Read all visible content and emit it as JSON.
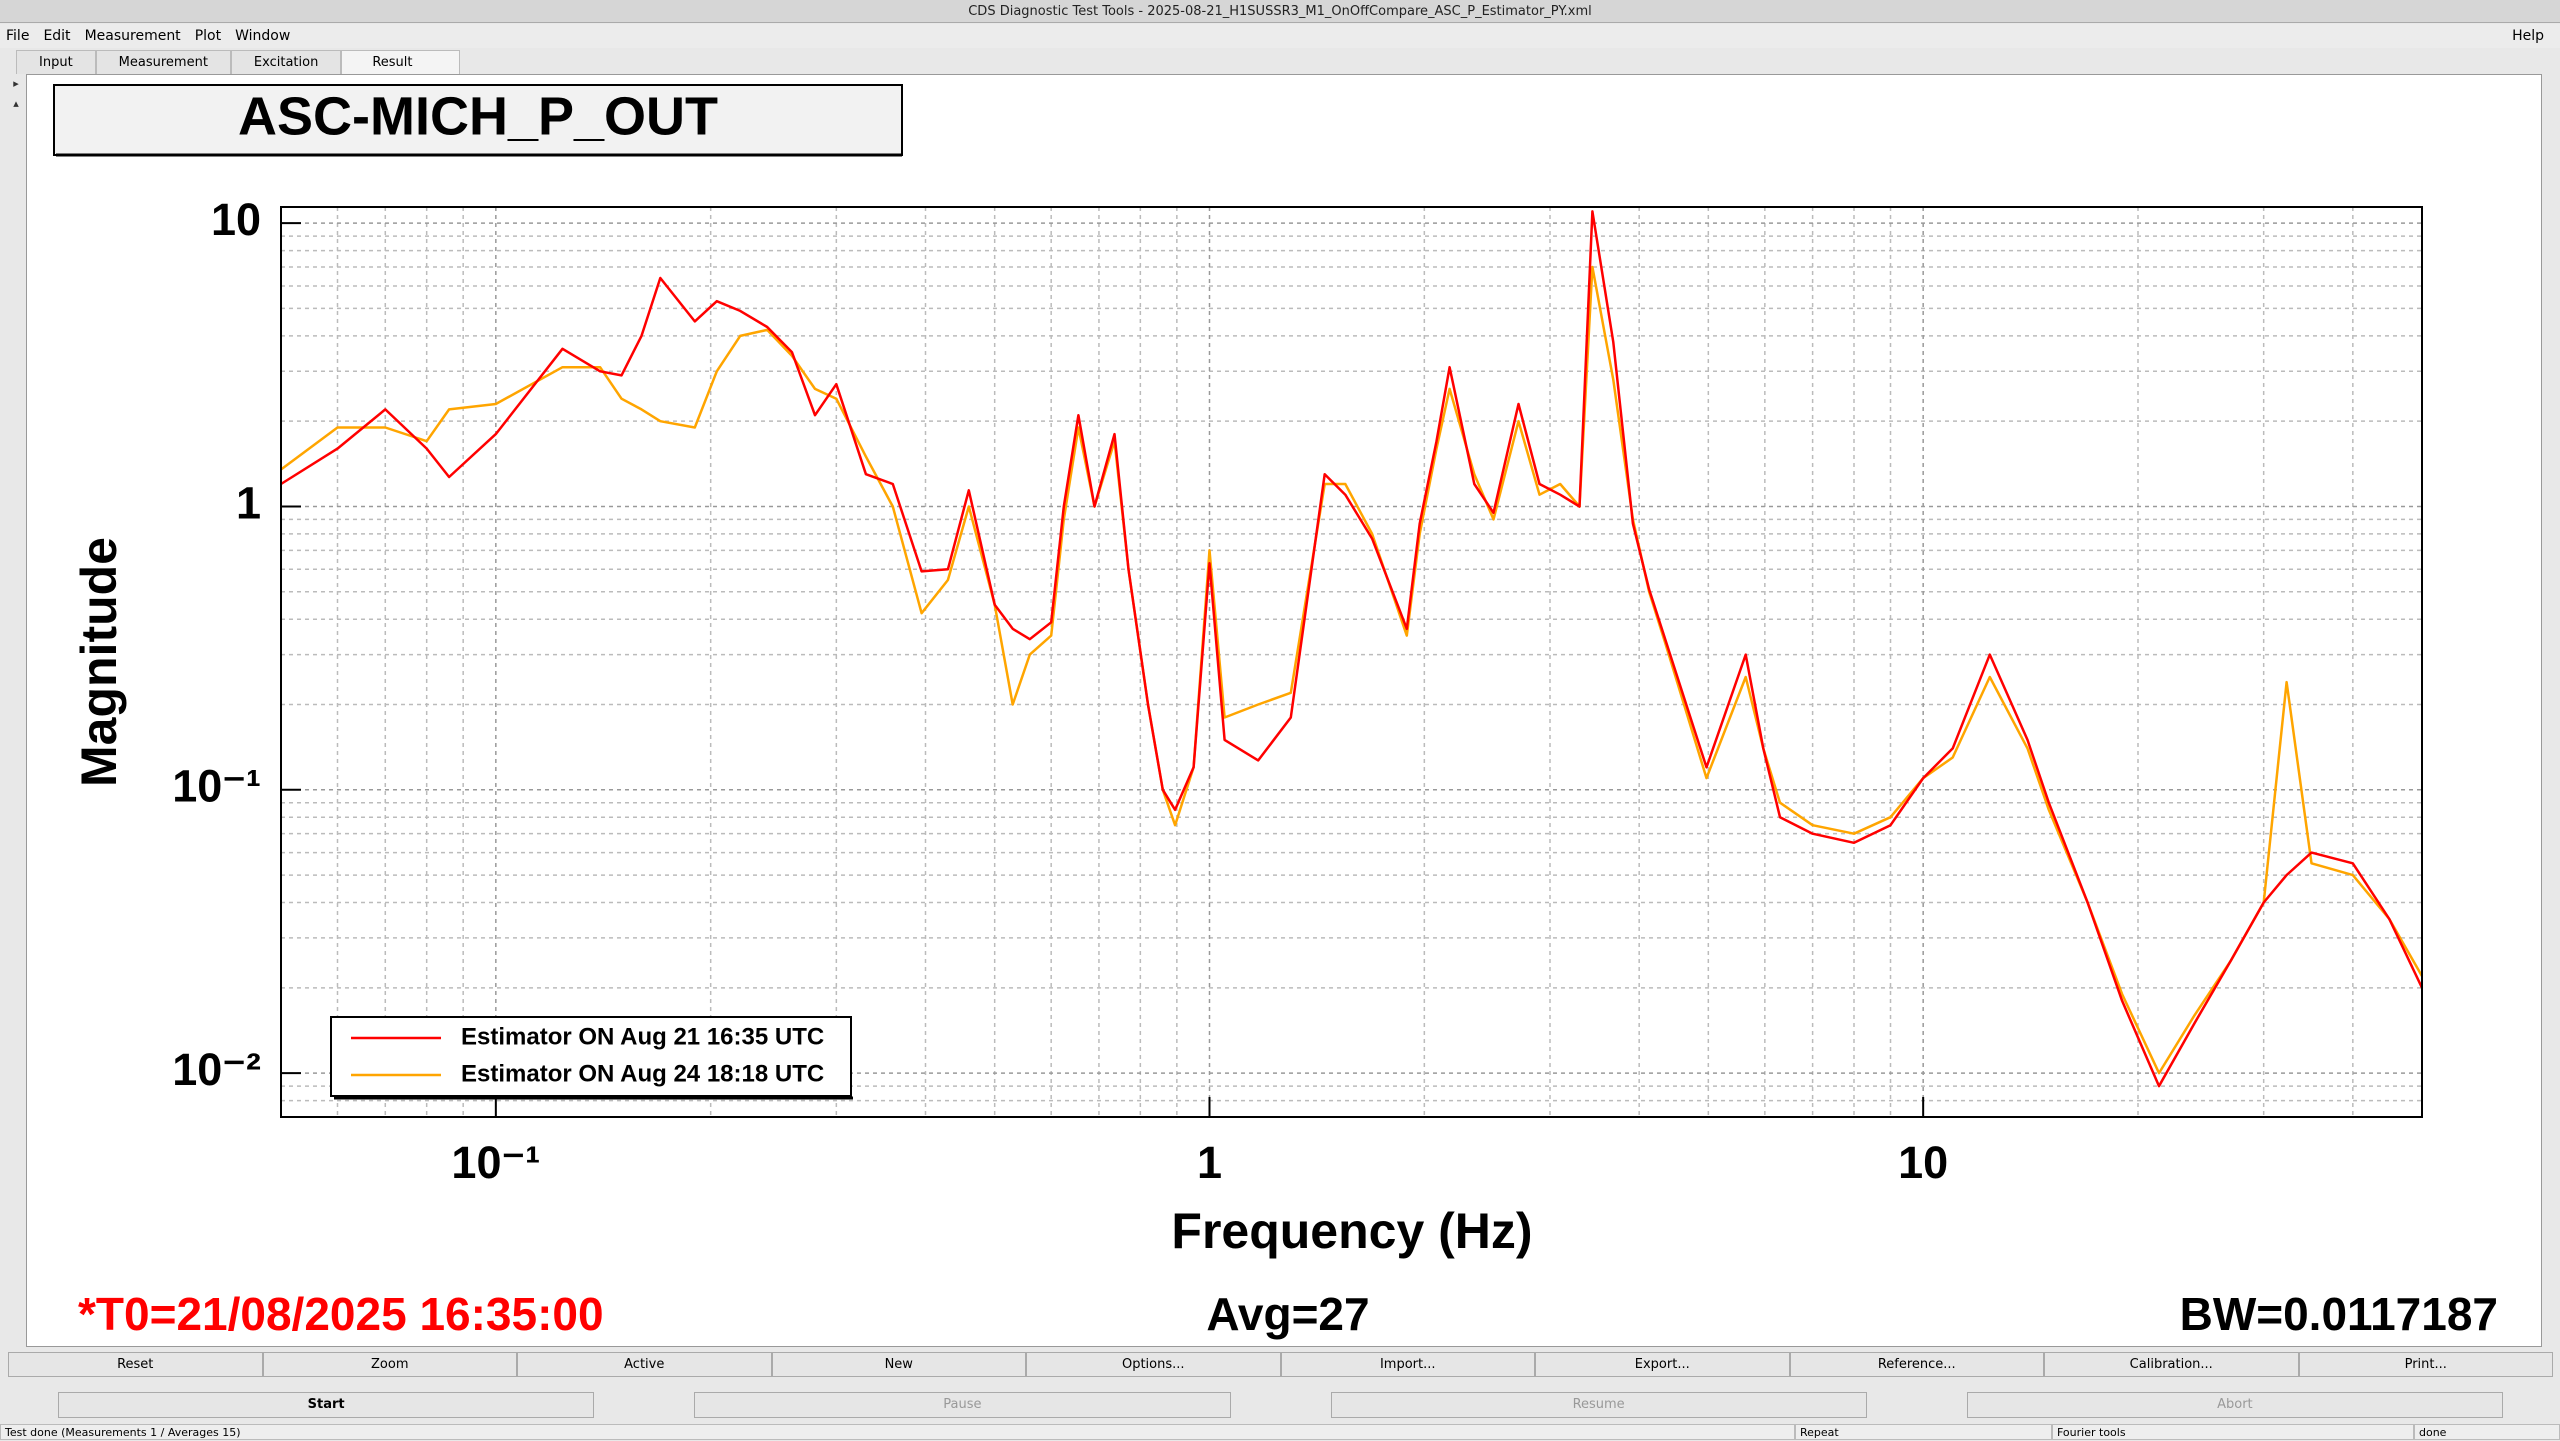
{
  "window_title": "CDS Diagnostic Test Tools - 2025-08-21_H1SUSSR3_M1_OnOffCompare_ASC_P_Estimator_PY.xml",
  "menu": [
    "File",
    "Edit",
    "Measurement",
    "Plot",
    "Window"
  ],
  "help": "Help",
  "tabs": [
    "Input",
    "Measurement",
    "Excitation",
    "Result"
  ],
  "chart_data": {
    "type": "line",
    "title": "ASC-MICH_P_OUT",
    "xlabel": "Frequency (Hz)",
    "ylabel": "Magnitude",
    "xlog": true,
    "ylog": true,
    "xlim": [
      0.05,
      50
    ],
    "ylim": [
      0.007,
      11.4
    ],
    "xticks": [
      {
        "value": 0.1,
        "label": "10⁻¹"
      },
      1,
      10
    ],
    "yticks": [
      {
        "value": 0.01,
        "label": "10⁻²"
      },
      {
        "value": 0.1,
        "label": "10⁻¹"
      },
      1,
      10
    ],
    "xminor": [
      0.05,
      0.06,
      0.07,
      0.08,
      0.09,
      0.2,
      0.3,
      0.4,
      0.5,
      0.6,
      0.7,
      0.8,
      0.9,
      2,
      3,
      4,
      5,
      6,
      7,
      8,
      9,
      20,
      30,
      40,
      50
    ],
    "yminor": [
      0.007,
      0.008,
      0.009,
      0.02,
      0.03,
      0.04,
      0.05,
      0.06,
      0.07,
      0.08,
      0.09,
      0.2,
      0.3,
      0.4,
      0.5,
      0.6,
      0.7,
      0.8,
      0.9,
      2,
      3,
      4,
      5,
      6,
      7,
      8,
      9
    ],
    "grid": true,
    "legend": "bottom-left",
    "x": [
      0.05,
      0.06,
      0.07,
      0.08,
      0.086,
      0.1,
      0.124,
      0.14,
      0.15,
      0.16,
      0.17,
      0.19,
      0.204,
      0.22,
      0.24,
      0.26,
      0.28,
      0.3,
      0.33,
      0.36,
      0.395,
      0.43,
      0.46,
      0.5,
      0.53,
      0.56,
      0.6,
      0.625,
      0.655,
      0.69,
      0.736,
      0.77,
      0.82,
      0.86,
      0.895,
      0.95,
      1.0,
      1.05,
      1.17,
      1.3,
      1.45,
      1.55,
      1.69,
      1.89,
      1.97,
      2.08,
      2.17,
      2.35,
      2.5,
      2.71,
      2.9,
      3.1,
      3.3,
      3.44,
      3.68,
      3.92,
      4.13,
      4.35,
      4.97,
      5.64,
      5.97,
      6.3,
      7,
      8,
      9,
      10,
      11,
      12.4,
      14,
      15,
      17,
      19,
      21.4,
      24,
      27,
      30,
      32.3,
      35,
      40,
      45,
      50
    ],
    "series": [
      {
        "name": "Estimator ON Aug 21 16:35 UTC",
        "color": "#ff0000",
        "values": [
          1.2,
          1.6,
          2.2,
          1.6,
          1.27,
          1.8,
          3.6,
          3.0,
          2.9,
          4.0,
          6.4,
          4.5,
          5.3,
          4.9,
          4.3,
          3.5,
          2.1,
          2.7,
          1.3,
          1.2,
          0.59,
          0.6,
          1.14,
          0.45,
          0.37,
          0.34,
          0.39,
          1.0,
          2.1,
          1.0,
          1.8,
          0.6,
          0.2,
          0.1,
          0.085,
          0.12,
          0.63,
          0.15,
          0.127,
          0.18,
          1.3,
          1.1,
          0.77,
          0.37,
          0.87,
          1.7,
          3.1,
          1.2,
          0.95,
          2.3,
          1.2,
          1.1,
          1.0,
          11,
          3.8,
          0.87,
          0.51,
          0.34,
          0.12,
          0.3,
          0.14,
          0.08,
          0.07,
          0.065,
          0.075,
          0.11,
          0.14,
          0.3,
          0.15,
          0.09,
          0.04,
          0.018,
          0.009,
          0.015,
          0.025,
          0.04,
          0.05,
          0.06,
          0.055,
          0.035,
          0.02
        ]
      },
      {
        "name": "Estimator ON Aug 24 18:18 UTC",
        "color": "#ffa500",
        "values": [
          1.35,
          1.9,
          1.9,
          1.7,
          2.2,
          2.3,
          3.1,
          3.1,
          2.4,
          2.2,
          2.0,
          1.9,
          3.0,
          4.0,
          4.2,
          3.4,
          2.6,
          2.4,
          1.5,
          1.0,
          0.42,
          0.55,
          1.0,
          0.45,
          0.2,
          0.3,
          0.35,
          0.9,
          1.9,
          1.0,
          1.7,
          0.6,
          0.2,
          0.1,
          0.075,
          0.12,
          0.7,
          0.18,
          0.2,
          0.22,
          1.2,
          1.2,
          0.8,
          0.35,
          0.8,
          1.6,
          2.6,
          1.3,
          0.9,
          2.0,
          1.1,
          1.2,
          1.0,
          7.0,
          2.8,
          0.9,
          0.5,
          0.33,
          0.11,
          0.25,
          0.14,
          0.09,
          0.075,
          0.07,
          0.08,
          0.11,
          0.13,
          0.25,
          0.14,
          0.085,
          0.04,
          0.019,
          0.01,
          0.016,
          0.025,
          0.04,
          0.24,
          0.055,
          0.05,
          0.035,
          0.022
        ]
      }
    ]
  },
  "status": {
    "t0": "*T0=21/08/2025 16:35:00",
    "avg": "Avg=27",
    "bw": "BW=0.0117187"
  },
  "buttons": [
    "Reset",
    "Zoom",
    "Active",
    "New",
    "Options...",
    "Import...",
    "Export...",
    "Reference...",
    "Calibration...",
    "Print..."
  ],
  "controls": [
    "Start",
    "Pause",
    "Resume",
    "Abort"
  ],
  "statusbar": [
    "Test done (Measurements 1 / Averages 15)",
    "Repeat",
    "Fourier tools",
    "done"
  ]
}
